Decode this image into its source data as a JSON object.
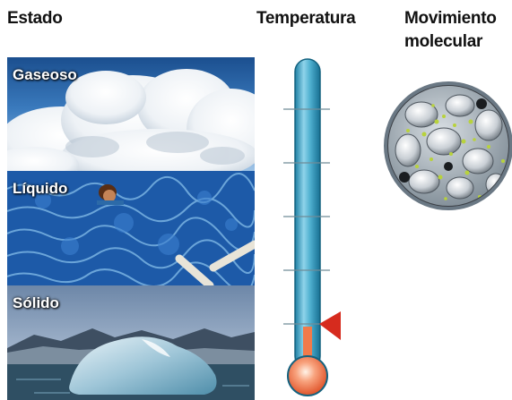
{
  "headers": {
    "state": "Estado",
    "temperature": "Temperatura",
    "motion": "Movimiento\nmolecular"
  },
  "states": [
    {
      "label": "Gaseoso",
      "image": "clouds"
    },
    {
      "label": "Líquido",
      "image": "swimming-pool-water"
    },
    {
      "label": "Sólido",
      "image": "iceberg"
    }
  ],
  "thermometer": {
    "tick_count": 5,
    "indicator": "red-triangle-marker",
    "level_fraction": 0.08
  },
  "molecule_view": {
    "icon": "magnified-particles-circle"
  },
  "colors": {
    "thermo_tube": "#3fa6c6",
    "marker": "#d62b1e",
    "bulb": "#f06a3c"
  }
}
